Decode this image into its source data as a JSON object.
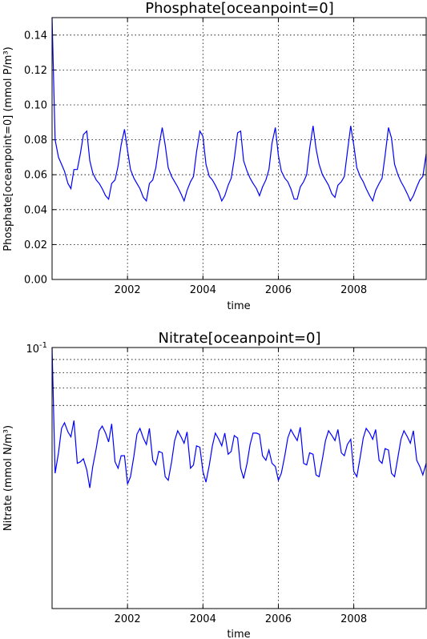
{
  "chart_data": [
    {
      "type": "line",
      "title": "Phosphate[oceanpoint=0]",
      "xlabel": "time",
      "ylabel": "Phosphate[oceanpoint=0] (mmol P/m³)",
      "xlim": [
        2000.0,
        2009.92
      ],
      "ylim": [
        0.0,
        0.15
      ],
      "yscale": "linear",
      "grid": true,
      "xticks": [
        2002,
        2004,
        2006,
        2008
      ],
      "xtick_labels": [
        "2002",
        "2004",
        "2006",
        "2008"
      ],
      "yticks": [
        0.0,
        0.02,
        0.04,
        0.06,
        0.08,
        0.1,
        0.12,
        0.14
      ],
      "ytick_labels": [
        "0.00",
        "0.02",
        "0.04",
        "0.06",
        "0.08",
        "0.10",
        "0.12",
        "0.14"
      ],
      "series_color": "#0000ff",
      "x": [
        2000.0,
        2000.08,
        2000.17,
        2000.25,
        2000.33,
        2000.42,
        2000.5,
        2000.58,
        2000.67,
        2000.75,
        2000.83,
        2000.92,
        2001.0,
        2001.08,
        2001.17,
        2001.25,
        2001.33,
        2001.42,
        2001.5,
        2001.58,
        2001.67,
        2001.75,
        2001.83,
        2001.92,
        2002.0,
        2002.08,
        2002.17,
        2002.25,
        2002.33,
        2002.42,
        2002.5,
        2002.58,
        2002.67,
        2002.75,
        2002.83,
        2002.92,
        2003.0,
        2003.08,
        2003.17,
        2003.25,
        2003.33,
        2003.42,
        2003.5,
        2003.58,
        2003.67,
        2003.75,
        2003.83,
        2003.92,
        2004.0,
        2004.08,
        2004.17,
        2004.25,
        2004.33,
        2004.42,
        2004.5,
        2004.58,
        2004.67,
        2004.75,
        2004.83,
        2004.92,
        2005.0,
        2005.08,
        2005.17,
        2005.25,
        2005.33,
        2005.42,
        2005.5,
        2005.58,
        2005.67,
        2005.75,
        2005.83,
        2005.92,
        2006.0,
        2006.08,
        2006.17,
        2006.25,
        2006.33,
        2006.42,
        2006.5,
        2006.58,
        2006.67,
        2006.75,
        2006.83,
        2006.92,
        2007.0,
        2007.08,
        2007.17,
        2007.25,
        2007.33,
        2007.42,
        2007.5,
        2007.58,
        2007.67,
        2007.75,
        2007.83,
        2007.92,
        2008.0,
        2008.08,
        2008.17,
        2008.25,
        2008.33,
        2008.42,
        2008.5,
        2008.58,
        2008.67,
        2008.75,
        2008.83,
        2008.92,
        2009.0,
        2009.08,
        2009.17,
        2009.25,
        2009.33,
        2009.42,
        2009.5,
        2009.58,
        2009.67,
        2009.75,
        2009.83,
        2009.92
      ],
      "y": [
        0.15,
        0.08,
        0.07,
        0.066,
        0.062,
        0.055,
        0.052,
        0.063,
        0.063,
        0.072,
        0.083,
        0.085,
        0.068,
        0.061,
        0.057,
        0.055,
        0.052,
        0.048,
        0.046,
        0.055,
        0.057,
        0.065,
        0.077,
        0.086,
        0.074,
        0.063,
        0.058,
        0.055,
        0.052,
        0.047,
        0.045,
        0.055,
        0.057,
        0.064,
        0.076,
        0.087,
        0.077,
        0.064,
        0.059,
        0.056,
        0.053,
        0.049,
        0.045,
        0.051,
        0.056,
        0.059,
        0.073,
        0.085,
        0.082,
        0.066,
        0.059,
        0.057,
        0.054,
        0.05,
        0.045,
        0.048,
        0.054,
        0.058,
        0.069,
        0.084,
        0.085,
        0.068,
        0.062,
        0.058,
        0.055,
        0.052,
        0.048,
        0.053,
        0.057,
        0.063,
        0.078,
        0.087,
        0.071,
        0.062,
        0.058,
        0.056,
        0.052,
        0.046,
        0.046,
        0.053,
        0.056,
        0.06,
        0.075,
        0.088,
        0.075,
        0.066,
        0.06,
        0.057,
        0.054,
        0.049,
        0.047,
        0.054,
        0.056,
        0.059,
        0.073,
        0.088,
        0.077,
        0.064,
        0.059,
        0.056,
        0.052,
        0.048,
        0.045,
        0.051,
        0.055,
        0.058,
        0.071,
        0.087,
        0.081,
        0.066,
        0.06,
        0.056,
        0.053,
        0.049,
        0.045,
        0.048,
        0.053,
        0.057,
        0.059,
        0.072
      ]
    },
    {
      "type": "line",
      "title": "Nitrate[oceanpoint=0]",
      "xlabel": "time",
      "ylabel": "Nitrate (mmol N/m³)",
      "xlim": [
        2000.0,
        2009.92
      ],
      "ylim": [
        0.01,
        0.1
      ],
      "yscale": "log",
      "grid": true,
      "xticks": [
        2002,
        2004,
        2006,
        2008
      ],
      "xtick_labels": [
        "2002",
        "2004",
        "2006",
        "2008"
      ],
      "yticks_major": [
        0.1
      ],
      "ytick_major_base": "10",
      "ytick_major_exponent": "-1",
      "yticks_minor": [
        0.09,
        0.08,
        0.07,
        0.06
      ],
      "series_color": "#0000ff",
      "x": [
        2000.0,
        2000.08,
        2000.17,
        2000.25,
        2000.33,
        2000.42,
        2000.5,
        2000.58,
        2000.67,
        2000.75,
        2000.83,
        2000.92,
        2001.0,
        2001.08,
        2001.17,
        2001.25,
        2001.33,
        2001.42,
        2001.5,
        2001.58,
        2001.67,
        2001.75,
        2001.83,
        2001.92,
        2002.0,
        2002.08,
        2002.17,
        2002.25,
        2002.33,
        2002.42,
        2002.5,
        2002.58,
        2002.67,
        2002.75,
        2002.83,
        2002.92,
        2003.0,
        2003.08,
        2003.17,
        2003.25,
        2003.33,
        2003.42,
        2003.5,
        2003.58,
        2003.67,
        2003.75,
        2003.83,
        2003.92,
        2004.0,
        2004.08,
        2004.17,
        2004.25,
        2004.33,
        2004.42,
        2004.5,
        2004.58,
        2004.67,
        2004.75,
        2004.83,
        2004.92,
        2005.0,
        2005.08,
        2005.17,
        2005.25,
        2005.33,
        2005.42,
        2005.5,
        2005.58,
        2005.67,
        2005.75,
        2005.83,
        2005.92,
        2006.0,
        2006.08,
        2006.17,
        2006.25,
        2006.33,
        2006.42,
        2006.5,
        2006.58,
        2006.67,
        2006.75,
        2006.83,
        2006.92,
        2007.0,
        2007.08,
        2007.17,
        2007.25,
        2007.33,
        2007.42,
        2007.5,
        2007.58,
        2007.67,
        2007.75,
        2007.83,
        2007.92,
        2008.0,
        2008.08,
        2008.17,
        2008.25,
        2008.33,
        2008.42,
        2008.5,
        2008.58,
        2008.67,
        2008.75,
        2008.83,
        2008.92,
        2009.0,
        2009.08,
        2009.17,
        2009.25,
        2009.33,
        2009.42,
        2009.5,
        2009.58,
        2009.67,
        2009.75,
        2009.83,
        2009.92
      ],
      "y": [
        0.1,
        0.033,
        0.0395,
        0.049,
        0.0515,
        0.0475,
        0.0455,
        0.0525,
        0.036,
        0.0365,
        0.0375,
        0.034,
        0.029,
        0.035,
        0.041,
        0.048,
        0.05,
        0.047,
        0.0435,
        0.051,
        0.0365,
        0.0345,
        0.0385,
        0.0385,
        0.03,
        0.032,
        0.0385,
        0.0465,
        0.049,
        0.045,
        0.0425,
        0.049,
        0.037,
        0.0355,
        0.04,
        0.0395,
        0.032,
        0.031,
        0.0365,
        0.044,
        0.048,
        0.0455,
        0.043,
        0.0475,
        0.0345,
        0.0355,
        0.042,
        0.0415,
        0.0335,
        0.0305,
        0.0355,
        0.042,
        0.047,
        0.0445,
        0.042,
        0.047,
        0.039,
        0.04,
        0.046,
        0.045,
        0.0345,
        0.0315,
        0.036,
        0.0425,
        0.047,
        0.047,
        0.0465,
        0.0385,
        0.037,
        0.0405,
        0.036,
        0.035,
        0.031,
        0.033,
        0.0385,
        0.045,
        0.0485,
        0.046,
        0.044,
        0.0495,
        0.036,
        0.0355,
        0.0395,
        0.039,
        0.0325,
        0.032,
        0.0375,
        0.044,
        0.048,
        0.046,
        0.044,
        0.0485,
        0.0395,
        0.0385,
        0.0425,
        0.0445,
        0.0335,
        0.032,
        0.038,
        0.045,
        0.049,
        0.047,
        0.0445,
        0.0485,
        0.037,
        0.036,
        0.041,
        0.0405,
        0.033,
        0.032,
        0.038,
        0.0445,
        0.048,
        0.0455,
        0.043,
        0.048,
        0.037,
        0.035,
        0.0325,
        0.036
      ]
    }
  ]
}
